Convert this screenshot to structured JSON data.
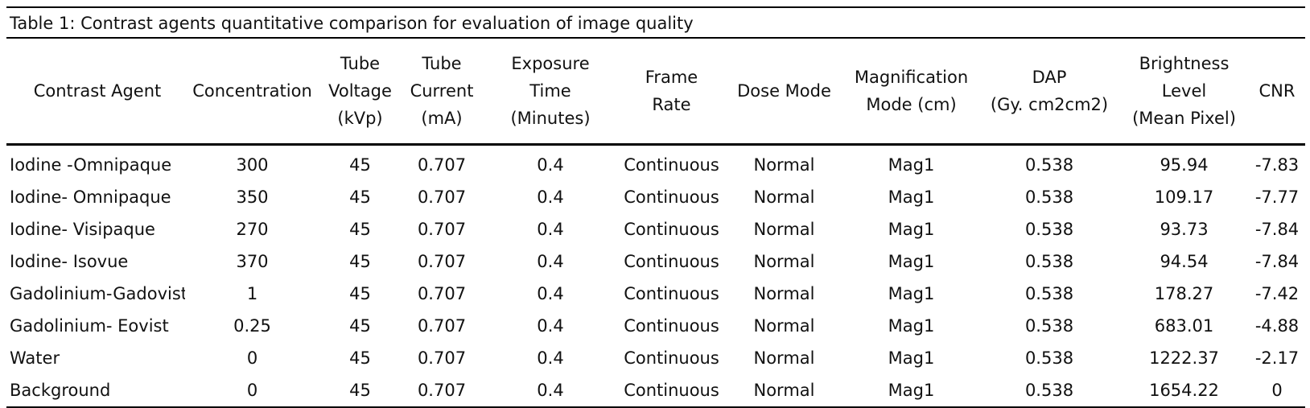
{
  "table": {
    "caption": "Table 1: Contrast agents quantitative comparison for evaluation of image quality",
    "headers": [
      [
        "Contrast Agent"
      ],
      [
        "Concentration"
      ],
      [
        "Tube",
        "Voltage",
        "(kVp)"
      ],
      [
        "Tube",
        "Current",
        "(mA)"
      ],
      [
        "Exposure",
        "Time",
        "(Minutes)"
      ],
      [
        "Frame",
        "Rate"
      ],
      [
        "Dose Mode"
      ],
      [
        "Magnification",
        "Mode (cm)"
      ],
      [
        "DAP",
        "(Gy. cm2cm2)"
      ],
      [
        "Brightness",
        "Level",
        "(Mean Pixel)"
      ],
      [
        "CNR"
      ]
    ],
    "rows": [
      [
        "Iodine -Omnipaque",
        "300",
        "45",
        "0.707",
        "0.4",
        "Continuous",
        "Normal",
        "Mag1",
        "0.538",
        "95.94",
        "-7.83"
      ],
      [
        "Iodine- Omnipaque",
        "350",
        "45",
        "0.707",
        "0.4",
        "Continuous",
        "Normal",
        "Mag1",
        "0.538",
        "109.17",
        "-7.77"
      ],
      [
        "Iodine- Visipaque",
        "270",
        "45",
        "0.707",
        "0.4",
        "Continuous",
        "Normal",
        "Mag1",
        "0.538",
        "93.73",
        "-7.84"
      ],
      [
        "Iodine- Isovue",
        "370",
        "45",
        "0.707",
        "0.4",
        "Continuous",
        "Normal",
        "Mag1",
        "0.538",
        "94.54",
        "-7.84"
      ],
      [
        "Gadolinium-Gadovist",
        "1",
        "45",
        "0.707",
        "0.4",
        "Continuous",
        "Normal",
        "Mag1",
        "0.538",
        "178.27",
        "-7.42"
      ],
      [
        "Gadolinium- Eovist",
        "0.25",
        "45",
        "0.707",
        "0.4",
        "Continuous",
        "Normal",
        "Mag1",
        "0.538",
        "683.01",
        "-4.88"
      ],
      [
        "Water",
        "0",
        "45",
        "0.707",
        "0.4",
        "Continuous",
        "Normal",
        "Mag1",
        "0.538",
        "1222.37",
        "-2.17"
      ],
      [
        "Background",
        "0",
        "45",
        "0.707",
        "0.4",
        "Continuous",
        "Normal",
        "Mag1",
        "0.538",
        "1654.22",
        "0"
      ]
    ]
  }
}
